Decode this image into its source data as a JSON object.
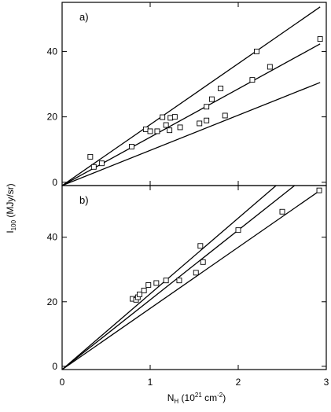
{
  "chart_data": [
    {
      "type": "scatter",
      "panel_label": "a)",
      "xlim": [
        0,
        3
      ],
      "ylim": [
        -1,
        55
      ],
      "x_ticks": [
        0,
        1,
        2,
        3
      ],
      "y_ticks": [
        0,
        20,
        40
      ],
      "y_tick_labels": [
        "0",
        "20",
        "40"
      ],
      "points": [
        {
          "x": 0.32,
          "y": 7.8
        },
        {
          "x": 0.36,
          "y": 4.7
        },
        {
          "x": 0.45,
          "y": 5.8
        },
        {
          "x": 0.79,
          "y": 10.9
        },
        {
          "x": 0.95,
          "y": 16.2
        },
        {
          "x": 1.0,
          "y": 15.6
        },
        {
          "x": 1.08,
          "y": 15.6
        },
        {
          "x": 1.14,
          "y": 19.9
        },
        {
          "x": 1.18,
          "y": 17.5
        },
        {
          "x": 1.22,
          "y": 15.9
        },
        {
          "x": 1.23,
          "y": 19.7
        },
        {
          "x": 1.28,
          "y": 20.0
        },
        {
          "x": 1.34,
          "y": 16.8
        },
        {
          "x": 1.56,
          "y": 18.0
        },
        {
          "x": 1.64,
          "y": 18.9
        },
        {
          "x": 1.64,
          "y": 23.1
        },
        {
          "x": 1.7,
          "y": 25.4
        },
        {
          "x": 1.8,
          "y": 28.7
        },
        {
          "x": 1.85,
          "y": 20.4
        },
        {
          "x": 2.16,
          "y": 31.3
        },
        {
          "x": 2.21,
          "y": 40.0
        },
        {
          "x": 2.36,
          "y": 35.3
        },
        {
          "x": 2.93,
          "y": 43.8
        }
      ],
      "fit_lines": [
        {
          "x0": 0,
          "y0": -1.0,
          "x1": 2.93,
          "y1": 53.6
        },
        {
          "x0": 0,
          "y0": -1.0,
          "x1": 2.93,
          "y1": 42.3
        },
        {
          "x0": 0,
          "y0": -1.0,
          "x1": 2.93,
          "y1": 30.5
        }
      ]
    },
    {
      "type": "scatter",
      "panel_label": "b)",
      "xlim": [
        0,
        3
      ],
      "ylim": [
        -1,
        56
      ],
      "x_ticks": [
        0,
        1,
        2,
        3
      ],
      "y_ticks": [
        0,
        20,
        40
      ],
      "y_tick_labels": [
        "0",
        "20",
        "40"
      ],
      "points": [
        {
          "x": 0.8,
          "y": 20.9
        },
        {
          "x": 0.84,
          "y": 20.6
        },
        {
          "x": 0.86,
          "y": 21.4
        },
        {
          "x": 0.88,
          "y": 22.3
        },
        {
          "x": 0.93,
          "y": 23.5
        },
        {
          "x": 0.98,
          "y": 25.2
        },
        {
          "x": 1.07,
          "y": 25.8
        },
        {
          "x": 1.18,
          "y": 26.6
        },
        {
          "x": 1.33,
          "y": 26.6
        },
        {
          "x": 1.52,
          "y": 29.0
        },
        {
          "x": 1.57,
          "y": 37.3
        },
        {
          "x": 1.6,
          "y": 32.3
        },
        {
          "x": 2.0,
          "y": 42.2
        },
        {
          "x": 2.5,
          "y": 47.9
        },
        {
          "x": 2.92,
          "y": 54.5
        }
      ],
      "fit_lines": [
        {
          "x0": 0,
          "y0": -1.0,
          "x1": 2.43,
          "y1": 56.0
        },
        {
          "x0": 0,
          "y0": -1.0,
          "x1": 2.64,
          "y1": 56.0
        },
        {
          "x0": 0,
          "y0": -1.0,
          "x1": 2.93,
          "y1": 54.5
        }
      ]
    }
  ],
  "axes": {
    "x_tick_labels": [
      "0",
      "1",
      "2",
      "3"
    ],
    "xlabel": {
      "prefix": "N",
      "sub": "H",
      "middle": " (10",
      "sup1": "21",
      "middle2": " cm",
      "sup2": "-2",
      "suffix": ")"
    },
    "ylabel": {
      "prefix": "I",
      "sub": "100",
      "suffix": " (MJy/sr)"
    }
  }
}
